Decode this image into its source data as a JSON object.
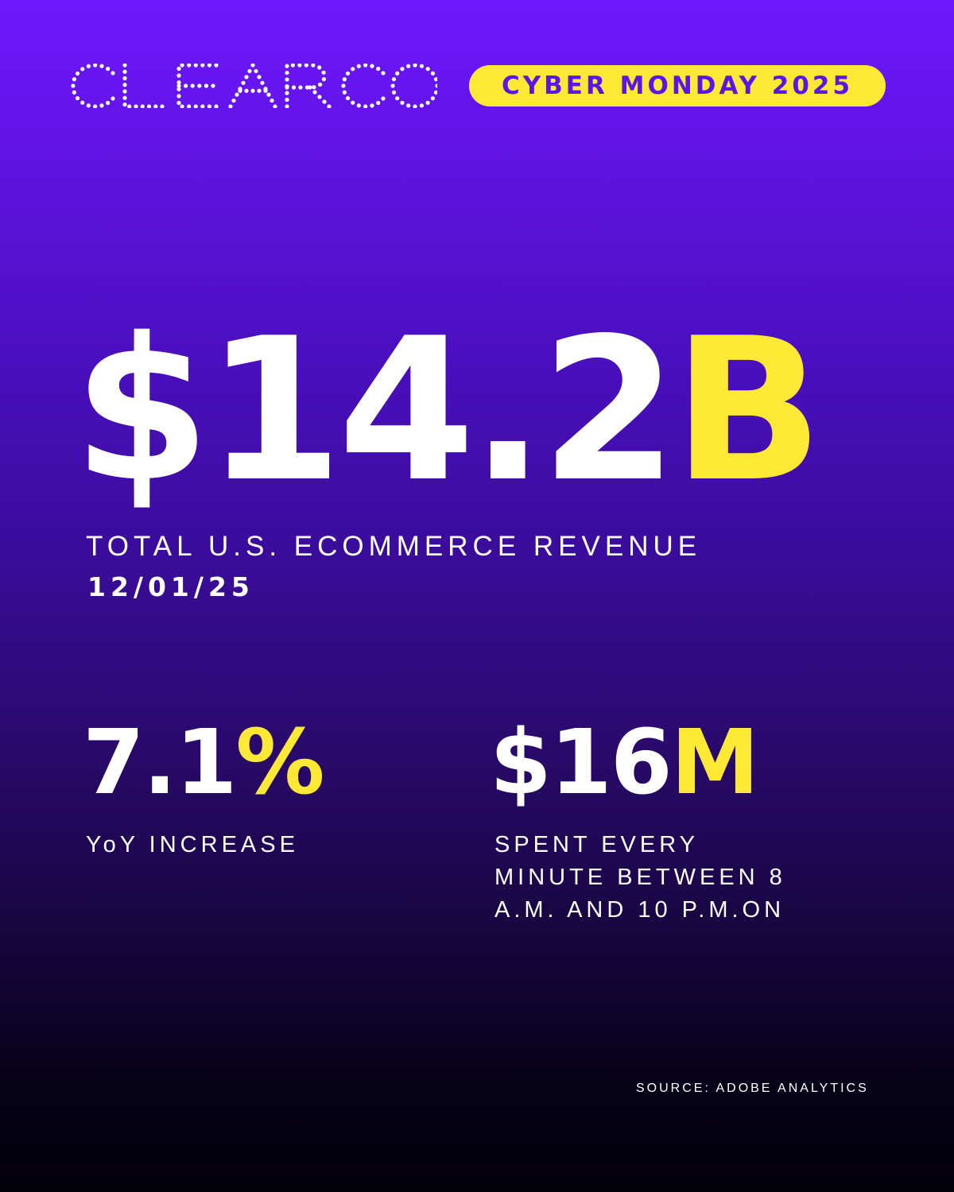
{
  "brand": {
    "logo_text": "CLEARCO",
    "logo_icon": "dotted-wordmark-logo"
  },
  "badge": {
    "label": "CYBER MONDAY 2025"
  },
  "hero": {
    "value": "$14.2",
    "unit": "B",
    "label": "TOTAL U.S. ECOMMERCE REVENUE",
    "date": "12/01/25"
  },
  "stats": [
    {
      "value": "7.1",
      "unit": "%",
      "label_lines": [
        "YoY INCREASE"
      ]
    },
    {
      "value": "$16",
      "unit": "M",
      "label_lines": [
        "SPENT EVERY",
        "MINUTE BETWEEN 8",
        "A.M. AND 10 P.M.ON"
      ]
    }
  ],
  "source": "SOURCE: ADOBE ANALYTICS",
  "colors": {
    "accent_yellow": "#fde935",
    "gradient_top": "#6f17fe",
    "gradient_bottom": "#020008",
    "badge_text": "#5a16e6"
  }
}
